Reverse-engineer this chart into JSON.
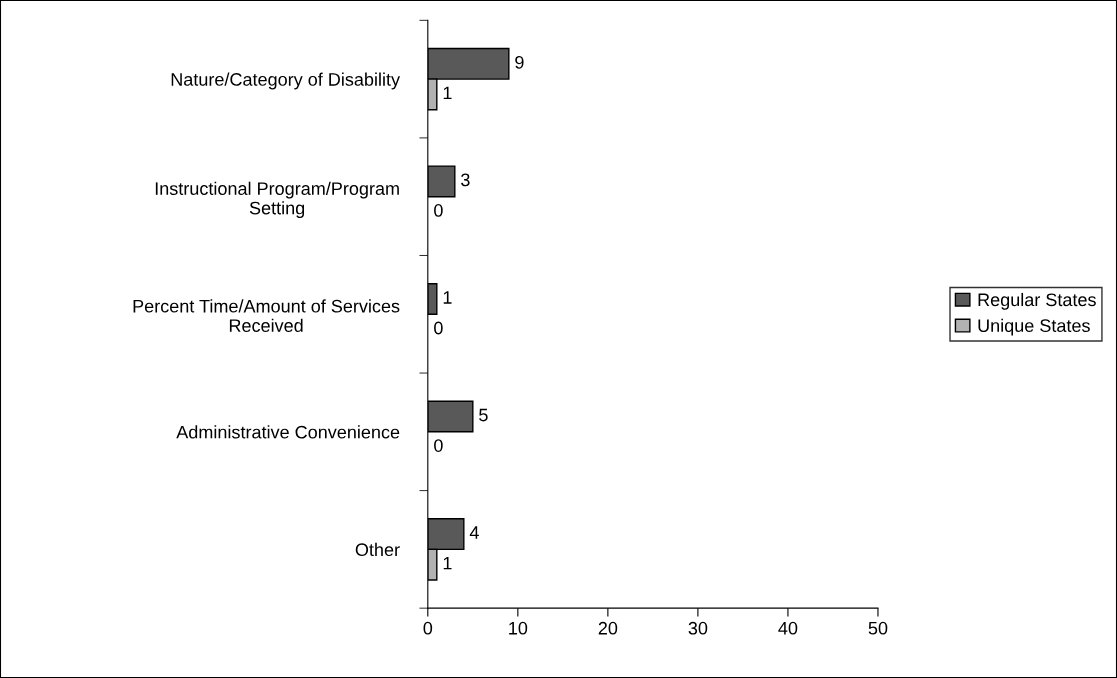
{
  "chart_data": {
    "type": "bar",
    "orientation": "horizontal",
    "categories": [
      "Nature/Category of Disability",
      "Instructional Program/Program\nSetting",
      "Percent Time/Amount of Services\nReceived",
      "Administrative Convenience",
      "Other"
    ],
    "series": [
      {
        "name": "Regular States",
        "color": "#595959",
        "values": [
          9,
          3,
          1,
          5,
          4
        ]
      },
      {
        "name": "Unique States",
        "color": "#b2b2b2",
        "values": [
          1,
          0,
          0,
          0,
          1
        ]
      }
    ],
    "xlim": [
      0,
      50
    ],
    "xticks": [
      0,
      10,
      20,
      30,
      40,
      50
    ],
    "data_labels": true,
    "grid": false,
    "legend": "right"
  }
}
